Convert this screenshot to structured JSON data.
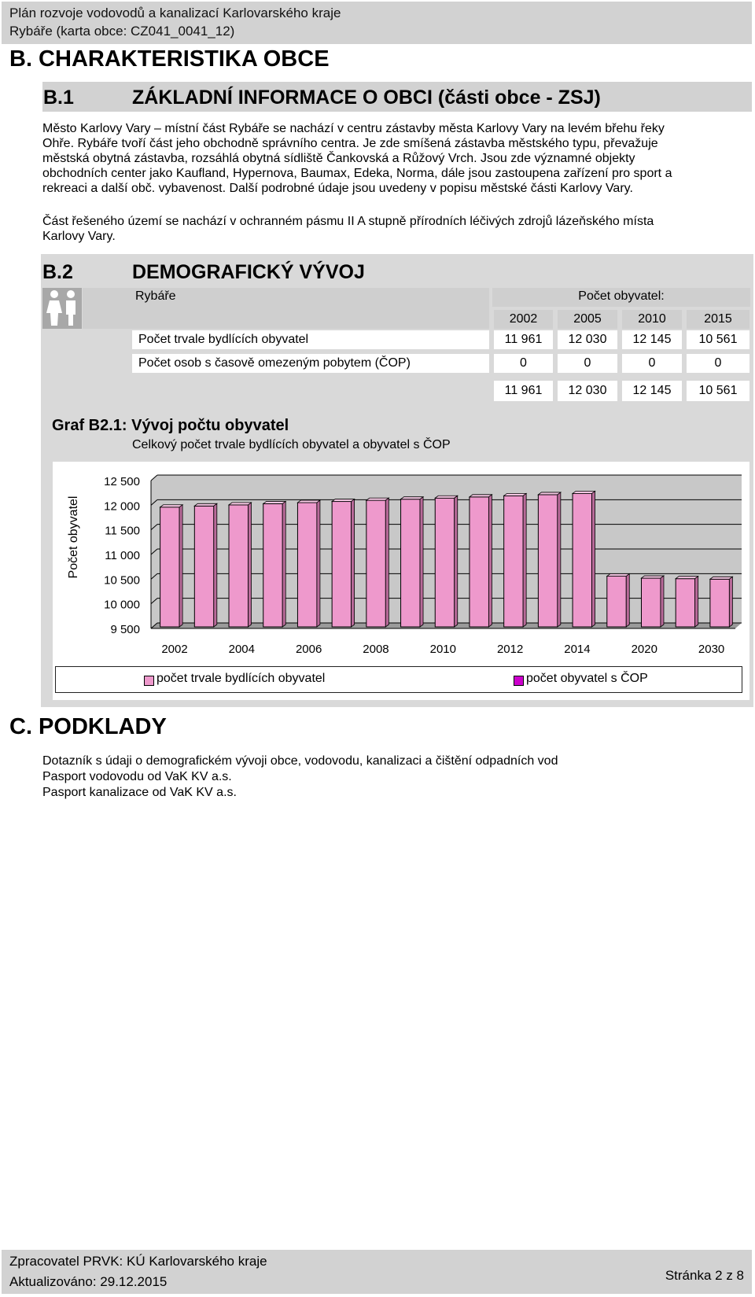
{
  "header": {
    "line1": "Plán rozvoje vodovodů a kanalizací Karlovarského kraje",
    "line2": "Rybáře (karta obce: CZ041_0041_12)"
  },
  "section_b": {
    "title": "B. CHARAKTERISTIKA OBCE"
  },
  "b1": {
    "number": "B.1",
    "title": "ZÁKLADNÍ INFORMACE O OBCI (části obce - ZSJ)",
    "para1": [
      "Město Karlovy Vary – místní část Rybáře se nachází v centru zástavby města Karlovy Vary na levém břehu řeky",
      "Ohře. Rybáře tvoří část jeho obchodně správního centra. Je zde smíšená zástavba městského typu, převažuje",
      "městská obytná zástavba, rozsáhlá obytná sídliště Čankovská a Růžový Vrch. Jsou zde významné objekty",
      "obchodních center jako Kaufland, Hypernova, Baumax, Edeka, Norma, dále jsou zastoupena zařízení pro sport a",
      "rekreaci a další obč. vybavenost. Další podrobné údaje jsou uvedeny v popisu městské části Karlovy Vary."
    ],
    "para2": [
      "Část řešeného území se nachází v ochranném pásmu II A stupně přírodních léčivých zdrojů lázeňského místa",
      "Karlovy Vary."
    ]
  },
  "b2": {
    "number": "B.2",
    "title": "DEMOGRAFICKÝ VÝVOJ",
    "table": {
      "place": "Rybáře",
      "value_header": "Počet obyvatel:",
      "years": [
        "2002",
        "2005",
        "2010",
        "2015"
      ],
      "rows": [
        {
          "label": "Počet trvale bydlících obyvatel",
          "values": [
            "11 961",
            "12 030",
            "12 145",
            "10 561"
          ]
        },
        {
          "label": "Počet osob s časově omezeným pobytem (ČOP)",
          "values": [
            "0",
            "0",
            "0",
            "0"
          ]
        }
      ],
      "totals": [
        "11 961",
        "12 030",
        "12 145",
        "10 561"
      ]
    },
    "graph_title": "Graf B2.1: Vývoj počtu obyvatel",
    "graph_subtitle": "Celkový počet trvale bydlících obyvatel a obyvatel s ČOP"
  },
  "chart_data": {
    "type": "bar",
    "ylabel": "Počet obyvatel",
    "ylim": [
      9500,
      12500
    ],
    "yticks": [
      9500,
      10000,
      10500,
      11000,
      11500,
      12000,
      12500
    ],
    "ytick_labels": [
      "9 500",
      "10 000",
      "10 500",
      "11 000",
      "11 500",
      "12 000",
      "12 500"
    ],
    "x_labels": [
      "2002",
      "2004",
      "2006",
      "2008",
      "2010",
      "2012",
      "2014",
      "2020",
      "2030"
    ],
    "grid": true,
    "legend_position": "bottom",
    "series": [
      {
        "name": "počet trvale bydlících obyvatel",
        "color": "#ee99cc",
        "values": [
          11961,
          11984,
          12007,
          12030,
          12053,
          12076,
          12099,
          12122,
          12145,
          12168,
          12191,
          12214,
          12237,
          10561,
          10520,
          10510,
          10500
        ]
      },
      {
        "name": "počet obyvatel s ČOP",
        "color": "#cc00cc",
        "values": [
          0,
          0,
          0,
          0,
          0,
          0,
          0,
          0,
          0,
          0,
          0,
          0,
          0,
          0,
          0,
          0,
          0
        ]
      }
    ]
  },
  "section_c": {
    "title": "C. PODKLADY",
    "lines": [
      "Dotazník s údaji o demografickém vývoji obce, vodovodu, kanalizaci a čištění odpadních vod",
      "Pasport vodovodu od VaK KV a.s.",
      "Pasport kanalizace od VaK KV a.s."
    ]
  },
  "footer": {
    "line1": "Zpracovatel PRVK: KÚ Karlovarského kraje",
    "line2": "Aktualizováno: 29.12.2015",
    "page": "Stránka 2 z 8"
  }
}
